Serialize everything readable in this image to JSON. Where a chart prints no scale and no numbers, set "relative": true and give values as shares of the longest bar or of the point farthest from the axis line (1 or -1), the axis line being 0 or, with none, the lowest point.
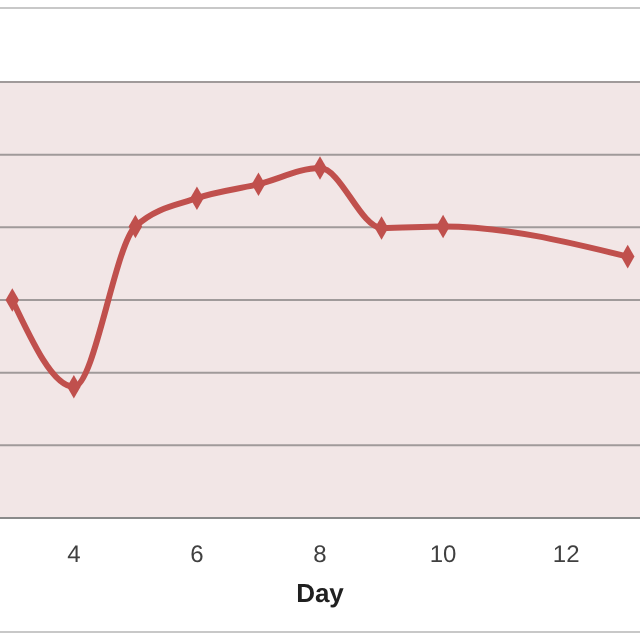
{
  "chart_data": {
    "type": "line",
    "relative": true,
    "xlabel": "Day",
    "x": [
      3,
      4,
      5,
      6,
      7,
      8,
      9,
      10,
      13
    ],
    "xlim": [
      2.8,
      13.2
    ],
    "xticks": [
      4,
      6,
      8,
      10,
      12
    ],
    "series": [
      {
        "color": "#c0504d",
        "values": [
          0.623,
          0.375,
          0.833,
          0.914,
          0.954,
          1,
          0.829,
          0.833,
          0.747
        ]
      }
    ],
    "grid": "y",
    "marker": "diamond",
    "line_style": "solid"
  }
}
